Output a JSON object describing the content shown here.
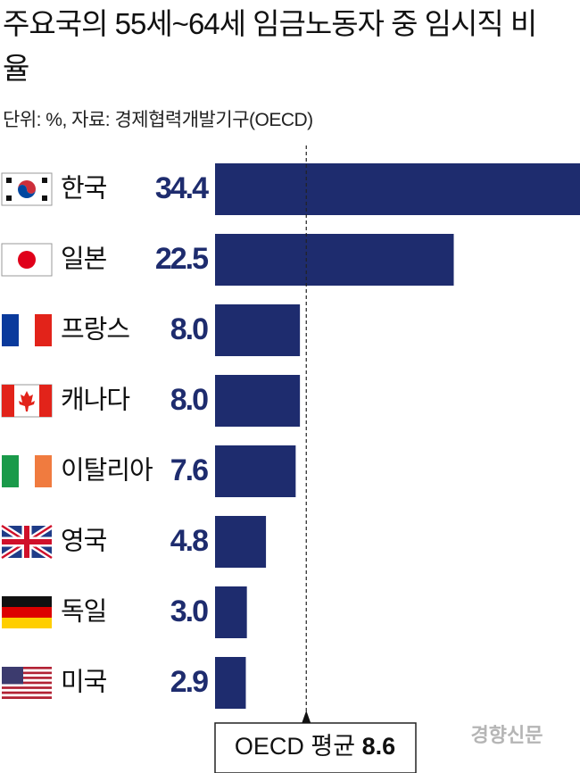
{
  "chart_data": {
    "type": "bar",
    "orientation": "horizontal",
    "title": "주요국의 55세~64세 임금노동자 중 임시직 비율",
    "subtitle": "단위: %, 자료: 경제협력개발기구(OECD)",
    "categories": [
      "한국",
      "일본",
      "프랑스",
      "캐나다",
      "이탈리아",
      "영국",
      "독일",
      "미국"
    ],
    "values": [
      34.4,
      22.5,
      8.0,
      8.0,
      7.6,
      4.8,
      3.0,
      2.9
    ],
    "value_labels": [
      "34.4",
      "22.5",
      "8.0",
      "8.0",
      "7.6",
      "4.8",
      "3.0",
      "2.9"
    ],
    "color": "#1e2c6e",
    "reference_line": {
      "label": "OECD 평균",
      "value": 8.6
    },
    "credit": "경향신문"
  }
}
